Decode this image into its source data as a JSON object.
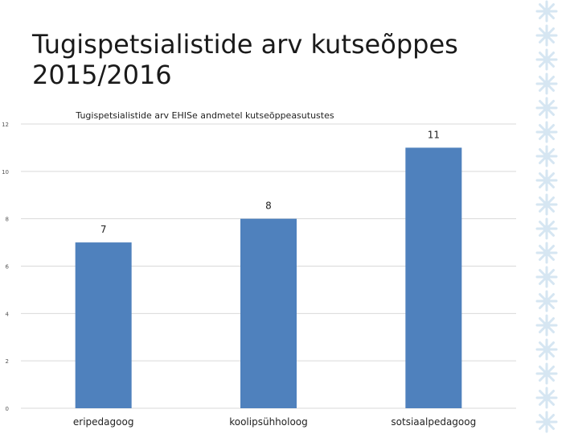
{
  "slide": {
    "title_line1": "Tugispetsialistide arv kutseõppes",
    "title_line2": "2015/2016"
  },
  "colors": {
    "bar": "#4f81bd",
    "grid": "#d9d9d9",
    "ornament": "#d6e6f2"
  },
  "chart_data": {
    "type": "bar",
    "title": "Tugispetsialistide arv EHISe andmetel kutseõppeasutustes",
    "categories": [
      "eripedagoog",
      "koolipsühholoog",
      "sotsiaalpedagoog"
    ],
    "values": [
      7,
      8,
      11
    ],
    "data_labels": [
      "7",
      "8",
      "11"
    ],
    "ylim": [
      0,
      12
    ],
    "yticks": [
      "0",
      "2",
      "4",
      "6",
      "8",
      "10",
      "12"
    ],
    "grid": true,
    "xlabel": "",
    "ylabel": ""
  }
}
